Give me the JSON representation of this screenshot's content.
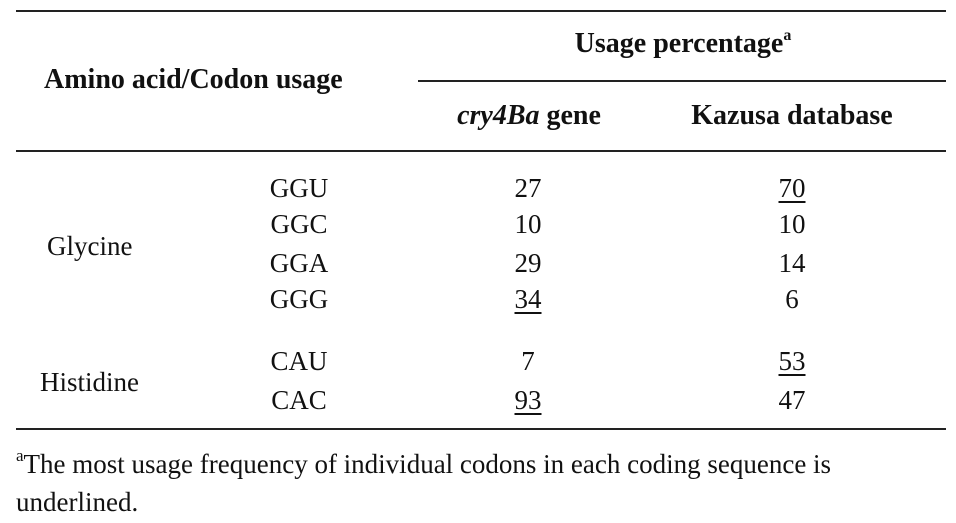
{
  "header": {
    "row_label": "Amino acid/Codon usage",
    "group_label": "Usage percentage",
    "group_sup": "a",
    "col1_italic": "cry4Ba",
    "col1_rest": " gene",
    "col2": "Kazusa database"
  },
  "rows": [
    {
      "amino": "Glycine",
      "codon": "GGU",
      "gene": "27",
      "kazusa": "70",
      "gene_max": false,
      "kazusa_max": true
    },
    {
      "amino": "",
      "codon": "GGC",
      "gene": "10",
      "kazusa": "10",
      "gene_max": false,
      "kazusa_max": false
    },
    {
      "amino": "",
      "codon": "GGA",
      "gene": "29",
      "kazusa": "14",
      "gene_max": false,
      "kazusa_max": false
    },
    {
      "amino": "",
      "codon": "GGG",
      "gene": "34",
      "kazusa": "6",
      "gene_max": true,
      "kazusa_max": false
    },
    {
      "amino": "Histidine",
      "codon": "CAU",
      "gene": "7",
      "kazusa": "53",
      "gene_max": false,
      "kazusa_max": true
    },
    {
      "amino": "",
      "codon": "CAC",
      "gene": "93",
      "kazusa": "47",
      "gene_max": true,
      "kazusa_max": false
    }
  ],
  "footnote": {
    "mark": "a",
    "text": "The most usage frequency of individual codons in each coding sequence is underlined."
  }
}
